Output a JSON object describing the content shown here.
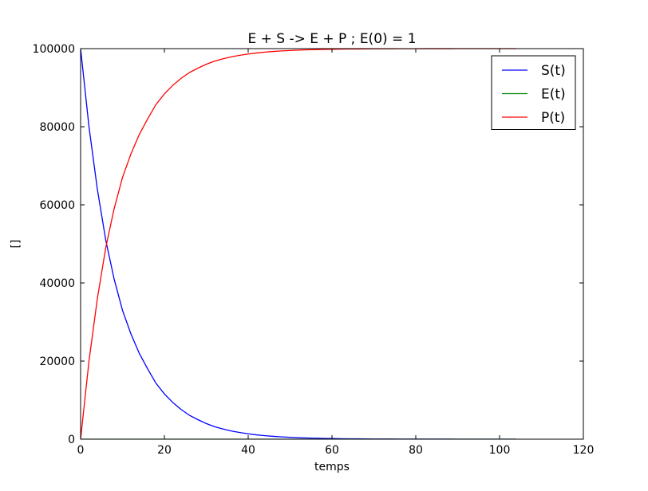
{
  "chart_data": {
    "type": "line",
    "title": "E + S -> E + P ; E(0) = 1",
    "xlabel": "temps",
    "ylabel": "[]",
    "xlim": [
      0,
      120
    ],
    "ylim": [
      0,
      100000
    ],
    "xticks": [
      0,
      20,
      40,
      60,
      80,
      100,
      120
    ],
    "yticks": [
      0,
      20000,
      40000,
      60000,
      80000,
      100000
    ],
    "grid": false,
    "legend_position": "top-right",
    "x": [
      0,
      2,
      4,
      6,
      8,
      10,
      12,
      14,
      16,
      18,
      20,
      22,
      24,
      26,
      28,
      30,
      32,
      34,
      36,
      38,
      40,
      42,
      44,
      46,
      48,
      50,
      52,
      54,
      56,
      58,
      60,
      62,
      64,
      66,
      68,
      70,
      72,
      74,
      76,
      78,
      80,
      82,
      84,
      86,
      88,
      90,
      92,
      94,
      96,
      98,
      100,
      102,
      104
    ],
    "series": [
      {
        "name": "S(t)",
        "color": "#0000ff",
        "values": [
          100000,
          80000,
          64000,
          51000,
          41000,
          33000,
          27000,
          22000,
          18000,
          14300,
          11600,
          9400,
          7600,
          6100,
          5000,
          4000,
          3200,
          2600,
          2100,
          1700,
          1370,
          1110,
          900,
          730,
          590,
          480,
          390,
          310,
          250,
          200,
          165,
          134,
          108,
          88,
          71,
          57,
          46,
          38,
          30,
          25,
          20,
          16,
          13,
          10,
          8,
          7,
          5,
          4,
          3,
          3,
          2,
          2,
          1
        ]
      },
      {
        "name": "E(t)",
        "color": "#008000",
        "values": [
          1,
          1,
          1,
          1,
          1,
          1,
          1,
          1,
          1,
          1,
          1,
          1,
          1,
          1,
          1,
          1,
          1,
          1,
          1,
          1,
          1,
          1,
          1,
          1,
          1,
          1,
          1,
          1,
          1,
          1,
          1,
          1,
          1,
          1,
          1,
          1,
          1,
          1,
          1,
          1,
          1,
          1,
          1,
          1,
          1,
          1,
          1,
          1,
          1,
          1,
          1,
          1,
          1
        ]
      },
      {
        "name": "P(t)",
        "color": "#ff0000",
        "values": [
          0,
          20000,
          36000,
          49000,
          59000,
          67000,
          73000,
          78000,
          82000,
          85700,
          88400,
          90600,
          92400,
          93900,
          95000,
          96000,
          96800,
          97400,
          97900,
          98300,
          98630,
          98890,
          99100,
          99270,
          99410,
          99520,
          99610,
          99690,
          99750,
          99800,
          99835,
          99866,
          99892,
          99912,
          99929,
          99943,
          99954,
          99962,
          99970,
          99975,
          99980,
          99984,
          99987,
          99990,
          99992,
          99993,
          99995,
          99996,
          99997,
          99997,
          99998,
          99998,
          99999
        ]
      }
    ]
  }
}
